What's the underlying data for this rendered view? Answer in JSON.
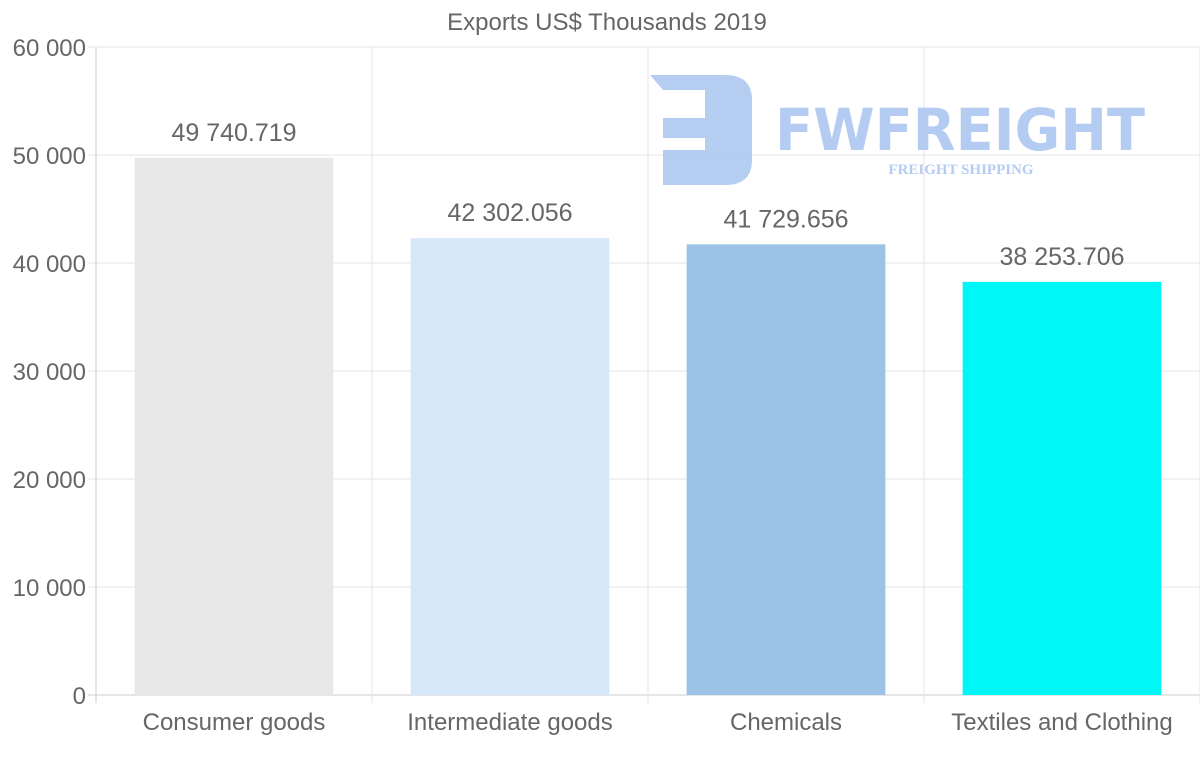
{
  "chart_data": {
    "type": "bar",
    "title": "Exports US$ Thousands 2019",
    "xlabel": "",
    "ylabel": "",
    "categories": [
      "Consumer goods",
      "Intermediate goods",
      "Chemicals",
      "Textiles and Clothing"
    ],
    "values": [
      49740.719,
      42302.056,
      41729.656,
      38253.706
    ],
    "data_labels": [
      "49 740.719",
      "42 302.056",
      "41 729.656",
      "38 253.706"
    ],
    "colors": [
      "#e8e8e8",
      "#d6e7f8",
      "#9cc3e6",
      "#00f7f7"
    ],
    "ylim": [
      0,
      60000
    ],
    "yticks": [
      0,
      10000,
      20000,
      30000,
      40000,
      50000,
      60000
    ],
    "ytick_labels": [
      "0",
      "10 000",
      "20 000",
      "30 000",
      "40 000",
      "50 000",
      "60 000"
    ],
    "grid": true,
    "legend": "none"
  },
  "watermark": {
    "brand": "FWFREIGHT",
    "tagline": "FREIGHT SHIPPING",
    "color": "#a9c4f0"
  }
}
